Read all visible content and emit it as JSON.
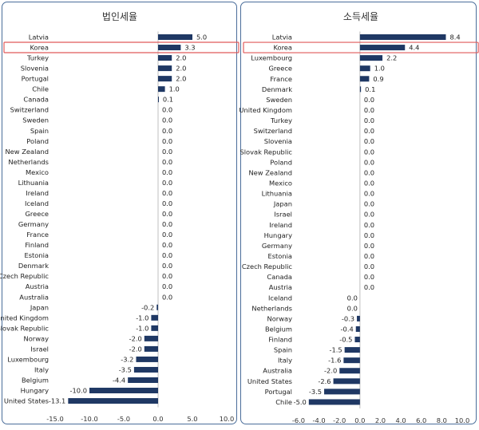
{
  "colors": {
    "bar": "#1f3864",
    "highlight": "#e05a5a",
    "axis": "#bfbfbf",
    "frame": "#4a6d9a"
  },
  "chart_data": [
    {
      "type": "bar",
      "orientation": "horizontal",
      "title": "법인세율",
      "highlight": "Korea",
      "xlim": [
        -15,
        10
      ],
      "xticks": [
        "-15.0",
        "-10.0",
        "-5.0",
        "0.0",
        "5.0",
        "10.0"
      ],
      "categories": [
        "Latvia",
        "Korea",
        "Turkey",
        "Slovenia",
        "Portugal",
        "Chile",
        "Canada",
        "Switzerland",
        "Sweden",
        "Spain",
        "Poland",
        "New Zealand",
        "Netherlands",
        "Mexico",
        "Lithuania",
        "Ireland",
        "Iceland",
        "Greece",
        "Germany",
        "France",
        "Finland",
        "Estonia",
        "Denmark",
        "Czech Republic",
        "Austria",
        "Australia",
        "Japan",
        "United Kingdom",
        "Slovak Republic",
        "Norway",
        "Israel",
        "Luxembourg",
        "Italy",
        "Belgium",
        "Hungary",
        "United States"
      ],
      "values": [
        5.0,
        3.3,
        2.0,
        2.0,
        2.0,
        1.0,
        0.1,
        0.0,
        0.0,
        0.0,
        0.0,
        0.0,
        0.0,
        0.0,
        0.0,
        0.0,
        0.0,
        0.0,
        0.0,
        0.0,
        0.0,
        0.0,
        0.0,
        0.0,
        0.0,
        0.0,
        -0.2,
        -1.0,
        -1.0,
        -2.0,
        -2.0,
        -3.2,
        -3.5,
        -4.4,
        -10.0,
        -13.1
      ],
      "labels": [
        "5.0",
        "3.3",
        "2.0",
        "2.0",
        "2.0",
        "1.0",
        "0.1",
        "0.0",
        "0.0",
        "0.0",
        "0.0",
        "0.0",
        "0.0",
        "0.0",
        "0.0",
        "0.0",
        "0.0",
        "0.0",
        "0.0",
        "0.0",
        "0.0",
        "0.0",
        "0.0",
        "0.0",
        "0.0",
        "0.0",
        "-0.2",
        "-1.0",
        "-1.0",
        "-2.0",
        "-2.0",
        "-3.2",
        "-3.5",
        "-4.4",
        "-10.0",
        "-13.1"
      ]
    },
    {
      "type": "bar",
      "orientation": "horizontal",
      "title": "소득세율",
      "highlight": "Korea",
      "xlim": [
        -6,
        10
      ],
      "xticks": [
        "-6.0",
        "-4.0",
        "-2.0",
        "0.0",
        "2.0",
        "4.0",
        "6.0",
        "8.0",
        "10.0"
      ],
      "categories": [
        "Latvia",
        "Korea",
        "Luxembourg",
        "Greece",
        "France",
        "Denmark",
        "Sweden",
        "United Kingdom",
        "Turkey",
        "Switzerland",
        "Slovenia",
        "Slovak Republic",
        "Poland",
        "New Zealand",
        "Mexico",
        "Lithuania",
        "Japan",
        "Israel",
        "Ireland",
        "Hungary",
        "Germany",
        "Estonia",
        "Czech Republic",
        "Canada",
        "Austria",
        "Iceland",
        "Netherlands",
        "Norway",
        "Belgium",
        "Finland",
        "Spain",
        "Italy",
        "Australia",
        "United States",
        "Portugal",
        "Chile"
      ],
      "values": [
        8.4,
        4.4,
        2.2,
        1.0,
        0.9,
        0.1,
        0.0,
        0.0,
        0.0,
        0.0,
        0.0,
        0.0,
        0.0,
        0.0,
        0.0,
        0.0,
        0.0,
        0.0,
        0.0,
        0.0,
        0.0,
        0.0,
        0.0,
        0.0,
        0.0,
        0.0,
        0.0,
        -0.3,
        -0.4,
        -0.5,
        -1.5,
        -1.6,
        -2.0,
        -2.6,
        -3.5,
        -5.0
      ],
      "labels": [
        "8.4",
        "4.4",
        "2.2",
        "1.0",
        "0.9",
        "0.1",
        "0.0",
        "0.0",
        "0.0",
        "0.0",
        "0.0",
        "0.0",
        "0.0",
        "0.0",
        "0.0",
        "0.0",
        "0.0",
        "0.0",
        "0.0",
        "0.0",
        "0.0",
        "0.0",
        "0.0",
        "0.0",
        "0.0",
        "0.0",
        "0.0",
        "-0.3",
        "-0.4",
        "-0.5",
        "-1.5",
        "-1.6",
        "-2.0",
        "-2.6",
        "-3.5",
        "-5.0"
      ]
    }
  ]
}
